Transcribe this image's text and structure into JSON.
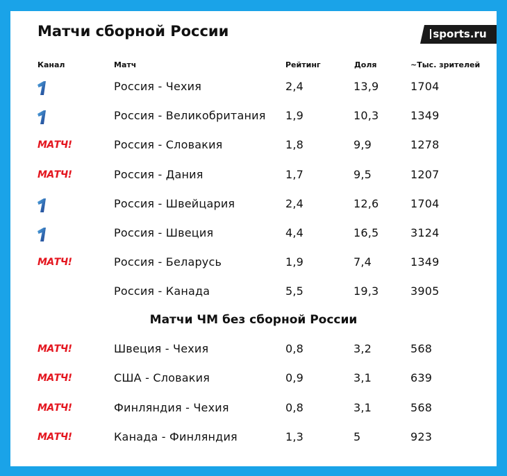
{
  "title": "Матчи сборной России",
  "brand": "sports.ru",
  "headers": {
    "channel": "Канал",
    "match": "Матч",
    "rating": "Рейтинг",
    "share": "Доля",
    "viewers": "~Тыс. зрителей"
  },
  "channels": {
    "one_logo_text": "1",
    "match_logo_text": "МАТЧ!"
  },
  "russia_matches": [
    {
      "channel": "one",
      "match": "Россия - Чехия",
      "rating": "2,4",
      "share": "13,9",
      "viewers": "1704"
    },
    {
      "channel": "one",
      "match": "Россия -  Великобритания",
      "rating": "1,9",
      "share": "10,3",
      "viewers": "1349"
    },
    {
      "channel": "match",
      "match": "Россия - Словакия",
      "rating": "1,8",
      "share": "9,9",
      "viewers": "1278"
    },
    {
      "channel": "match",
      "match": "Россия - Дания",
      "rating": "1,7",
      "share": "9,5",
      "viewers": "1207"
    },
    {
      "channel": "one",
      "match": "Россия - Швейцария",
      "rating": "2,4",
      "share": "12,6",
      "viewers": "1704"
    },
    {
      "channel": "one",
      "match": "Россия - Швеция",
      "rating": "4,4",
      "share": "16,5",
      "viewers": "3124"
    },
    {
      "channel": "match",
      "match": "Россия - Беларусь",
      "rating": "1,9",
      "share": "7,4",
      "viewers": "1349"
    },
    {
      "channel": "",
      "match": "Россия - Канада",
      "rating": "5,5",
      "share": "19,3",
      "viewers": "3905"
    }
  ],
  "section2_title": "Матчи ЧМ без сборной России",
  "other_matches": [
    {
      "channel": "match",
      "match": "Швеция - Чехия",
      "rating": "0,8",
      "share": "3,2",
      "viewers": "568"
    },
    {
      "channel": "match",
      "match": "США - Словакия",
      "rating": "0,9",
      "share": "3,1",
      "viewers": "639"
    },
    {
      "channel": "match",
      "match": "Финляндия - Чехия",
      "rating": "0,8",
      "share": "3,1",
      "viewers": "568"
    },
    {
      "channel": "match",
      "match": "Канада - Финляндия",
      "rating": "1,3",
      "share": "5",
      "viewers": "923"
    }
  ],
  "colors": {
    "frame": "#1aa3e8",
    "match_logo": "#e4161f",
    "one_logo": "#1c3f8f"
  }
}
